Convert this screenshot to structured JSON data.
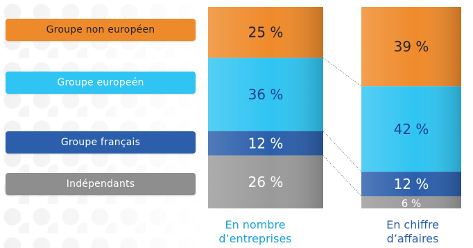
{
  "legend": [
    {
      "label": "Groupe non européen",
      "color": "#ef8a2a",
      "text_color": "#222222"
    },
    {
      "label": "Groupe europeén",
      "color": "#2fc4f2",
      "text_color": "#ffffff"
    },
    {
      "label": "Groupe français",
      "color": "#2b5eab",
      "text_color": "#ffffff"
    },
    {
      "label": "Indépendants",
      "color": "#8e8e8e",
      "text_color": "#ffffff"
    }
  ],
  "captions": {
    "col1": [
      "En nombre",
      "d’entreprises"
    ],
    "col2": [
      "En chiffre",
      "d’affaires"
    ]
  },
  "colors": {
    "caption_col1": "#1aa3d8",
    "caption_col2": "#2b5eab"
  },
  "chart_data": {
    "type": "bar",
    "stacked": true,
    "percent": true,
    "categories": [
      "En nombre d’entreprises",
      "En chiffre d’affaires"
    ],
    "series": [
      {
        "name": "Groupe non européen",
        "color": "#ef8a2a",
        "values": [
          25,
          39
        ],
        "labels": [
          "25 %",
          "39 %"
        ]
      },
      {
        "name": "Groupe europeén",
        "color": "#2fc4f2",
        "values": [
          36,
          42
        ],
        "labels": [
          "36 %",
          "42 %"
        ]
      },
      {
        "name": "Groupe français",
        "color": "#2b5eab",
        "values": [
          12,
          12
        ],
        "labels": [
          "12 %",
          "12 %"
        ]
      },
      {
        "name": "Indépendants",
        "color": "#9a9a9a",
        "values": [
          26,
          6
        ],
        "labels": [
          "26 %",
          "6 %"
        ]
      }
    ]
  }
}
